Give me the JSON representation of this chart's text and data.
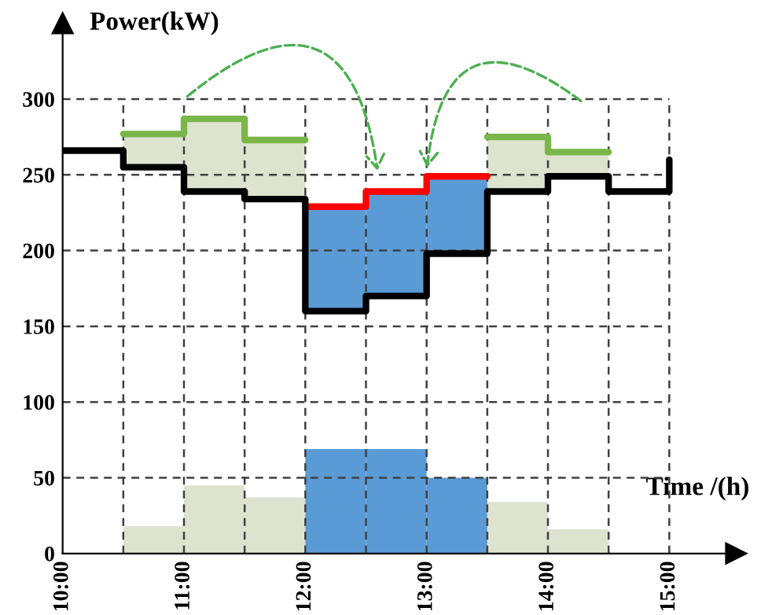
{
  "chart_data": {
    "type": "step",
    "xlabel": "Time /(h)",
    "ylabel": "Power(kW)",
    "xlim": [
      10,
      15.55
    ],
    "ylim": [
      0,
      350
    ],
    "xticks": [
      {
        "value": 10,
        "label": "10:00"
      },
      {
        "value": 10.5,
        "label": null
      },
      {
        "value": 11,
        "label": "11:00"
      },
      {
        "value": 11.5,
        "label": null
      },
      {
        "value": 12,
        "label": "12:00"
      },
      {
        "value": 12.5,
        "label": null
      },
      {
        "value": 13,
        "label": "13:00"
      },
      {
        "value": 13.5,
        "label": null
      },
      {
        "value": 14,
        "label": "14:00"
      },
      {
        "value": 14.5,
        "label": null
      },
      {
        "value": 15,
        "label": "15:00"
      }
    ],
    "yticks": [
      0,
      50,
      100,
      150,
      200,
      250,
      300
    ],
    "grid": true,
    "line_style": "solid",
    "marker": "none",
    "series": [
      {
        "type": "bar",
        "x": [
          10.75,
          11.25,
          11.75,
          12.25,
          12.75,
          13.25,
          13.75,
          14.25
        ],
        "values": [
          18,
          45,
          37,
          69,
          69,
          50,
          34,
          16
        ],
        "colors": [
          "#dde3cf",
          "#dde3cf",
          "#dde3cf",
          "#5b9bd5",
          "#5b9bd5",
          "#5b9bd5",
          "#dde3cf",
          "#dde3cf"
        ]
      },
      {
        "type": "bar",
        "x": [
          10.75,
          11.25,
          11.75,
          13.75,
          14.25
        ],
        "base": [
          255,
          239,
          234,
          239,
          249
        ],
        "values": [
          22,
          48,
          39,
          36,
          16
        ],
        "color": "#dde3cf"
      },
      {
        "type": "bar",
        "x": [
          12.25,
          12.75,
          13.25
        ],
        "base": [
          160,
          170,
          198
        ],
        "values": [
          69,
          69,
          51
        ],
        "color": "#5b9bd5"
      },
      {
        "type": "step",
        "color": "#7ab648",
        "x": [
          10.5,
          11,
          11.5,
          12
        ],
        "values": [
          277,
          287,
          273,
          273
        ]
      },
      {
        "type": "step",
        "color": "#7ab648",
        "x": [
          13.5,
          14,
          14.5
        ],
        "values": [
          275,
          265,
          265
        ]
      },
      {
        "type": "step",
        "color": "#ff0000",
        "x": [
          12,
          12.5,
          13,
          13.5
        ],
        "values": [
          229,
          239,
          249,
          249
        ]
      },
      {
        "color": "#000000",
        "x": [
          10,
          10.5,
          11,
          11.5,
          12,
          12.5,
          13,
          13.5,
          14,
          14.5,
          15
        ],
        "values": [
          266,
          255,
          239,
          234,
          160,
          170,
          198,
          239,
          249,
          239,
          260
        ]
      }
    ]
  }
}
